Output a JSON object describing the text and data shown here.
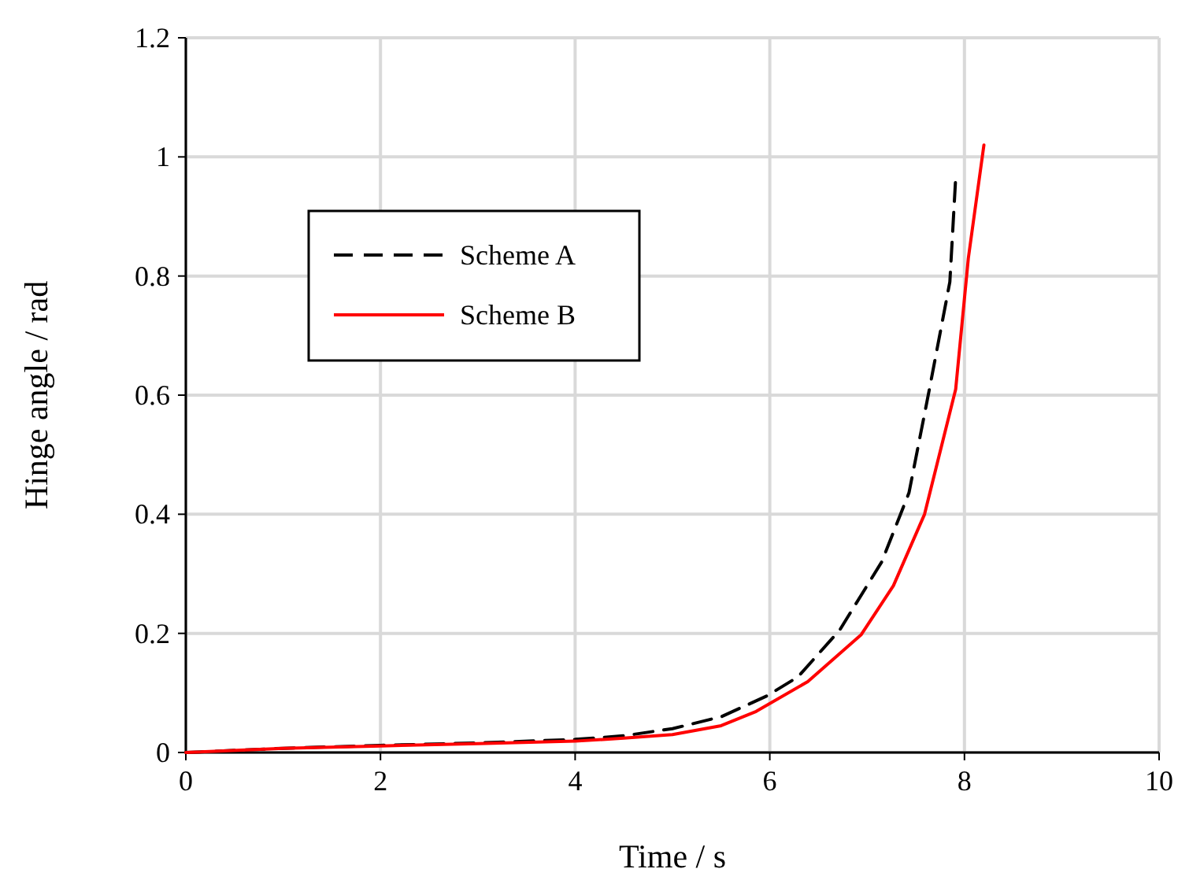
{
  "chart_data": {
    "type": "line",
    "xlabel": "Time / s",
    "ylabel": "Hinge angle / rad",
    "xlim": [
      0,
      10
    ],
    "ylim": [
      0,
      1.2
    ],
    "xticks": [
      0,
      2,
      4,
      6,
      8,
      10
    ],
    "yticks": [
      0,
      0.2,
      0.4,
      0.6,
      0.8,
      1,
      1.2
    ],
    "grid": true,
    "legend": "top left",
    "marker": "none",
    "series": [
      {
        "name": "Scheme A",
        "color": "#000000",
        "line_style": "dashed",
        "x": [
          0,
          1,
          2,
          3,
          4,
          4.5,
          5,
          5.5,
          5.97,
          6.29,
          6.72,
          7.15,
          7.43,
          7.64,
          7.85,
          7.91
        ],
        "values": [
          0,
          0.007,
          0.012,
          0.016,
          0.022,
          0.028,
          0.04,
          0.06,
          0.095,
          0.127,
          0.206,
          0.32,
          0.436,
          0.61,
          0.79,
          0.965
        ]
      },
      {
        "name": "Scheme B",
        "color": "#ff0000",
        "line_style": "solid",
        "x": [
          0,
          1,
          2,
          3,
          4,
          4.5,
          5,
          5.5,
          5.86,
          6.39,
          6.94,
          7.27,
          7.59,
          7.91,
          8.04,
          8.2
        ],
        "values": [
          0,
          0.007,
          0.011,
          0.015,
          0.019,
          0.024,
          0.03,
          0.045,
          0.069,
          0.119,
          0.198,
          0.28,
          0.4,
          0.61,
          0.83,
          1.02
        ]
      }
    ]
  }
}
